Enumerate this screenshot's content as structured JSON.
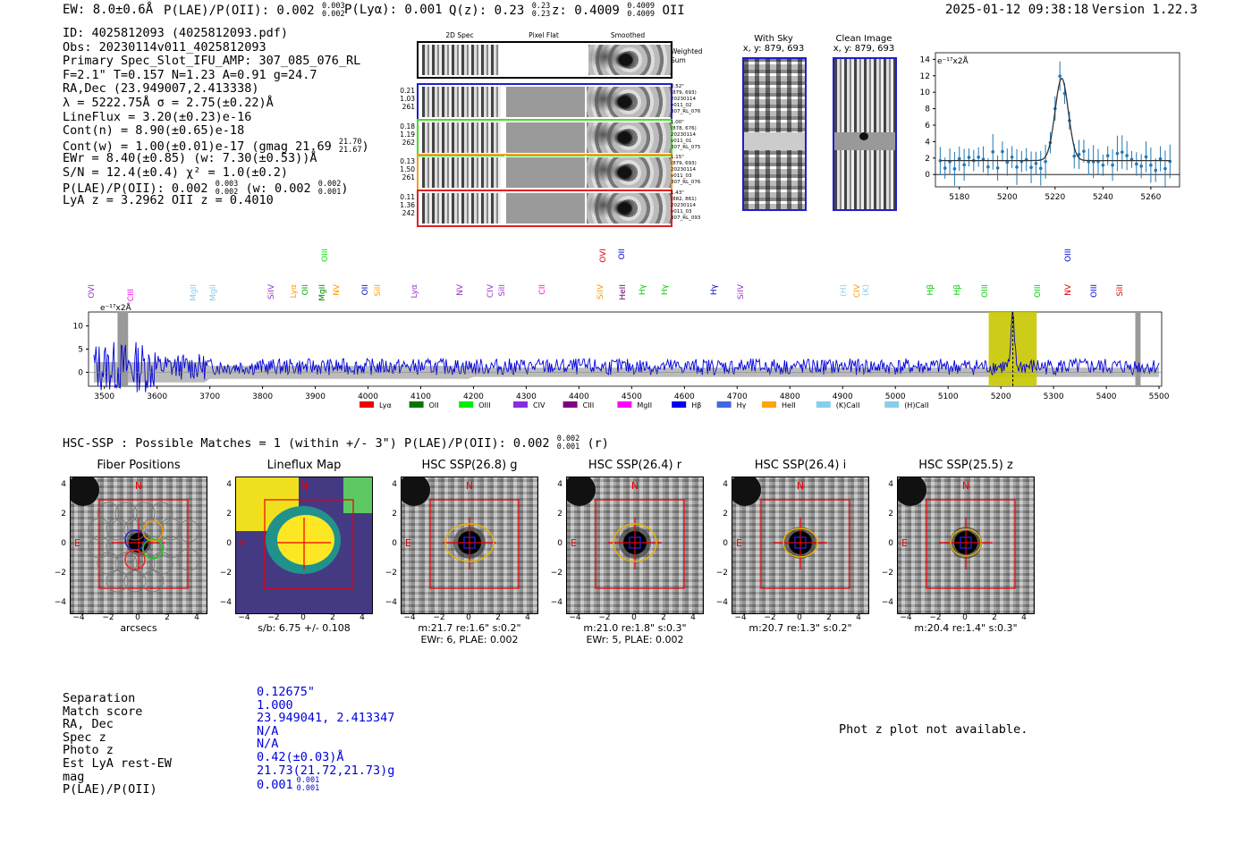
{
  "header": {
    "ew": "EW: 8.0±0.6Å",
    "plae_label": "P(LAE)/P(OII): 0.002",
    "plae_sup": "0.003",
    "plae_sub": "0.002",
    "plya": "P(Lyα): 0.001",
    "qz_label": "Q(z): 0.23",
    "qz_sup": "0.23",
    "qz_sub": "0.23",
    "z_label": "z: 0.4009",
    "z_sup": "0.4009",
    "z_sub": "0.4009",
    "z_line": "OII",
    "datetime": "2025-01-12 09:38:18",
    "version": "Version 1.22.3"
  },
  "info": {
    "id": "ID: 4025812093 (4025812093.pdf)",
    "obs": "Obs: 20230114v011_4025812093",
    "primary": "Primary Spec_Slot_IFU_AMP: 307_085_076_RL",
    "fit": "F=2.1\"  T=0.157  N=1.23  A=0.91  g=24.7",
    "radec": "RA,Dec (23.949007,2.413338)",
    "lambda": "λ = 5222.75Å  σ = 2.75(±0.22)Å",
    "lineflux": "LineFlux = 3.20(±0.23)e-16",
    "contn": "Cont(n) = 8.90(±0.65)e-18",
    "contw": "Cont(w) = 1.00(±0.01)e-17 (gmag 21.69",
    "contw_sup": "21.70",
    "contw_sub": "21.67",
    "contw_end": ")",
    "ewr": "EWr = 8.40(±0.85) (w: 7.30(±0.53))Å",
    "sn": "S/N = 12.4(±0.4)  χ² = 1.0(±0.2)",
    "plae": "P(LAE)/P(OII): 0.002",
    "plae_sup": "0.003",
    "plae_sub": "0.002",
    "plae_w": "(w: 0.002",
    "plae_w_sup": "0.002",
    "plae_w_sub": "0.001",
    "plae_w_end": ")",
    "lya": "LyA z = 3.2962  OII z = 0.4010"
  },
  "cutouts": {
    "col1": "2D Spec",
    "col2": "Pixel Flat",
    "col3": "Smoothed",
    "weighted": "Weighted Sum",
    "rows": [
      {
        "l1": "0.21",
        "l2": "1.03",
        "l3": "261",
        "i1": "0.52\"",
        "i2": "(879, 693)",
        "i3": "20230114",
        "i4": "v011_02",
        "i5": "307_RL_076",
        "color": "#1f1fcc"
      },
      {
        "l1": "0.18",
        "l2": "1.19",
        "l3": "262",
        "i1": "1.00\"",
        "i2": "(878, 676)",
        "i3": "20230114",
        "i4": "v011_01",
        "i5": "307_RL_075",
        "color": "#44dd22"
      },
      {
        "l1": "0.13",
        "l2": "1.50",
        "l3": "261",
        "i1": "1.15\"",
        "i2": "(879, 693)",
        "i3": "20230114",
        "i4": "v011_03",
        "i5": "307_RL_076",
        "color": "#f0a020"
      },
      {
        "l1": "0.11",
        "l2": "1.36",
        "l3": "242",
        "i1": "1.43\"",
        "i2": "(882, 861)",
        "i3": "20230114",
        "i4": "v011_03",
        "i5": "307_RL_093",
        "color": "#dd2222"
      }
    ]
  },
  "sky": {
    "with_sky": "With Sky",
    "with_sky_xy": "x, y: 879, 693",
    "clean": "Clean Image",
    "clean_xy": "x, y: 879, 693"
  },
  "zoom_plot": {
    "unit": "e⁻¹⁷x2Å",
    "yticks": [
      "0",
      "2",
      "4",
      "6",
      "8",
      "10",
      "12",
      "14"
    ],
    "xticks": [
      "5180",
      "5200",
      "5220",
      "5240",
      "5260"
    ]
  },
  "spectrum": {
    "unit": "e⁻¹⁷x2Å",
    "yticks": [
      "0",
      "5",
      "10"
    ],
    "xticks": [
      "3500",
      "3600",
      "3700",
      "3800",
      "3900",
      "4000",
      "4100",
      "4200",
      "4300",
      "4400",
      "4500",
      "4600",
      "4700",
      "4800",
      "4900",
      "5000",
      "5100",
      "5200",
      "5300",
      "5400",
      "5500"
    ],
    "lines": [
      {
        "name": "OVI",
        "color": "#9933cc"
      },
      {
        "name": "CIII",
        "color": "#ff00ff"
      },
      {
        "name": "MgII",
        "color": "#88ccee"
      },
      {
        "name": "MgII",
        "color": "#88ccee"
      },
      {
        "name": "SiIV",
        "color": "#9933cc"
      },
      {
        "name": "Lyα",
        "color": "#ff9900"
      },
      {
        "name": "OII",
        "color": "#00aa00"
      },
      {
        "name": "MgII",
        "color": "#008800"
      },
      {
        "name": "OIII",
        "color": "#00dd00"
      },
      {
        "name": "NV",
        "color": "#ff9900"
      },
      {
        "name": "OII",
        "color": "#0000cc"
      },
      {
        "name": "SiII",
        "color": "#ff9900"
      },
      {
        "name": "Lyα",
        "color": "#9933cc"
      },
      {
        "name": "NV",
        "color": "#9933cc"
      },
      {
        "name": "CIV",
        "color": "#9933cc"
      },
      {
        "name": "SiII",
        "color": "#9933cc"
      },
      {
        "name": "CII",
        "color": "#ff00ff"
      },
      {
        "name": "SiIV",
        "color": "#ff9900"
      },
      {
        "name": "OVI",
        "color": "#dd0000"
      },
      {
        "name": "OII",
        "color": "#0000cc"
      },
      {
        "name": "HeII",
        "color": "#660066"
      },
      {
        "name": "Hγ",
        "color": "#00cc00"
      },
      {
        "name": "Hγ",
        "color": "#00cc00"
      },
      {
        "name": "Hγ",
        "color": "#0000cc"
      },
      {
        "name": "SiIV",
        "color": "#9933cc"
      },
      {
        "name": "(H)",
        "color": "#88ccee"
      },
      {
        "name": "CIV",
        "color": "#ff9900"
      },
      {
        "name": "(K)",
        "color": "#88ccee"
      },
      {
        "name": "Hβ",
        "color": "#00cc00"
      },
      {
        "name": "Hβ",
        "color": "#00cc00"
      },
      {
        "name": "OIII",
        "color": "#00cc00"
      },
      {
        "name": "OIII",
        "color": "#00cc00"
      },
      {
        "name": "NV",
        "color": "#dd0000"
      },
      {
        "name": "OIII",
        "color": "#0000cc"
      },
      {
        "name": "OIII",
        "color": "#0000cc"
      },
      {
        "name": "SiII",
        "color": "#dd0000"
      }
    ],
    "legend": [
      {
        "name": "Lyα",
        "color": "#ee0000"
      },
      {
        "name": "OII",
        "color": "#007700"
      },
      {
        "name": "OIII",
        "color": "#00ee00"
      },
      {
        "name": "CIV",
        "color": "#8a2be2"
      },
      {
        "name": "CIII",
        "color": "#800080"
      },
      {
        "name": "MgII",
        "color": "#ff00ff"
      },
      {
        "name": "Hβ",
        "color": "#0000ee"
      },
      {
        "name": "Hγ",
        "color": "#4169e1"
      },
      {
        "name": "HeII",
        "color": "#ffa500"
      },
      {
        "name": "(K)CaII",
        "color": "#87ceeb"
      },
      {
        "name": "(H)CaII",
        "color": "#87ceeb"
      }
    ]
  },
  "hsc": {
    "title": "HSC-SSP : Possible Matches = 1 (within +/- 3\")  P(LAE)/P(OII): 0.002",
    "title_sup": "0.002",
    "title_sub": "0.001",
    "title_end": "(r)",
    "panels": [
      {
        "title": "Fiber Positions",
        "sub1": "arcsecs",
        "sub2": ""
      },
      {
        "title": "Lineflux Map",
        "sub1": "s/b: 6.75 +/- 0.108",
        "sub2": ""
      },
      {
        "title": "HSC SSP(26.8) g",
        "sub1": "m:21.7  re:1.6\"  s:0.2\"",
        "sub2": "EWr: 6, PLAE: 0.002"
      },
      {
        "title": "HSC SSP(26.4) r",
        "sub1": "m:21.0  re:1.8\"  s:0.3\"",
        "sub2": "EWr: 5, PLAE: 0.002"
      },
      {
        "title": "HSC SSP(26.4) i",
        "sub1": "m:20.7  re:1.3\"  s:0.2\"",
        "sub2": ""
      },
      {
        "title": "HSC SSP(25.5) z",
        "sub1": "m:20.4  re:1.4\"  s:0.3\"",
        "sub2": ""
      }
    ],
    "axis_ticks": [
      "−4",
      "−2",
      "0",
      "2",
      "4"
    ],
    "north": "N",
    "east": "E"
  },
  "match": {
    "labels": [
      "Separation",
      "Match score",
      "RA, Dec",
      "Spec z",
      "Photo z",
      "Est LyA rest-EW",
      "mag",
      "P(LAE)/P(OII)"
    ],
    "values": [
      "0.12675\"",
      "1.000",
      "23.949041, 2.413347",
      "N/A",
      "N/A",
      "0.42(±0.03)Å",
      "21.73(21.72,21.73)g",
      "0.001"
    ],
    "plae_sup": "0.001",
    "plae_sub": "0.001",
    "photz_msg": "Phot z plot not available."
  }
}
